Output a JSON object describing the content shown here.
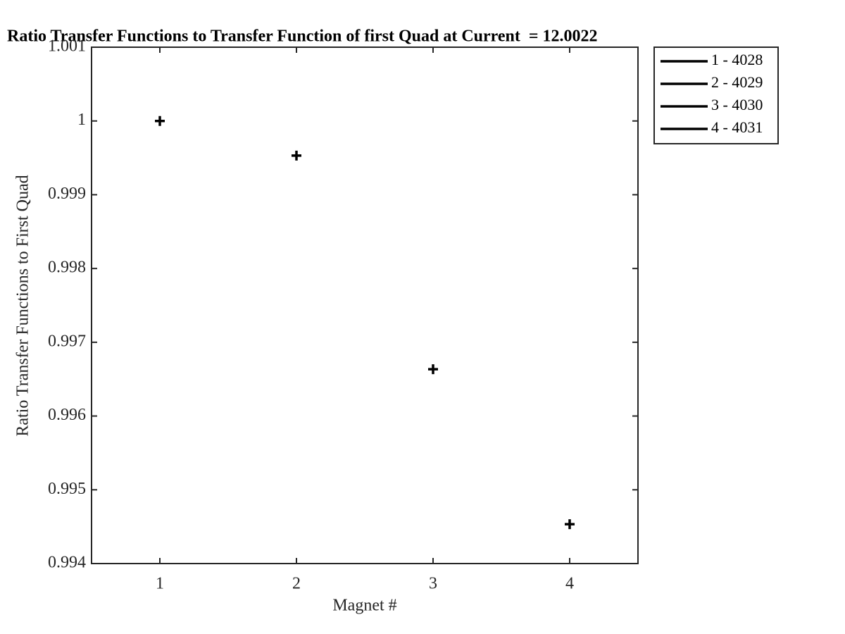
{
  "chart_data": {
    "type": "scatter",
    "title": "Ratio Transfer Functions to Transfer Function of first Quad at Current  = 12.0022",
    "x_label": "Magnet #",
    "y_label": "Ratio Transfer Functions to First Quad",
    "series": [
      {
        "name": "1 - 4028",
        "color": "#000000",
        "x": [
          1
        ],
        "values": [
          1.0
        ]
      },
      {
        "name": "2 - 4029",
        "color": "#000000",
        "x": [
          2
        ],
        "values": [
          0.99953
        ]
      },
      {
        "name": "3 - 4030",
        "color": "#000000",
        "x": [
          3
        ],
        "values": [
          0.996635
        ]
      },
      {
        "name": "4 - 4031",
        "color": "#000000",
        "x": [
          4
        ],
        "values": [
          0.994534
        ]
      }
    ],
    "xlim": [
      0.5,
      4.5
    ],
    "xticks": [
      1,
      2,
      3,
      4
    ],
    "ylim": [
      0.994,
      1.001
    ],
    "yticks": [
      0.994,
      0.995,
      0.996,
      0.997,
      0.998,
      0.999,
      1,
      1.001
    ],
    "grid": false,
    "legend": "outside-top-right"
  }
}
